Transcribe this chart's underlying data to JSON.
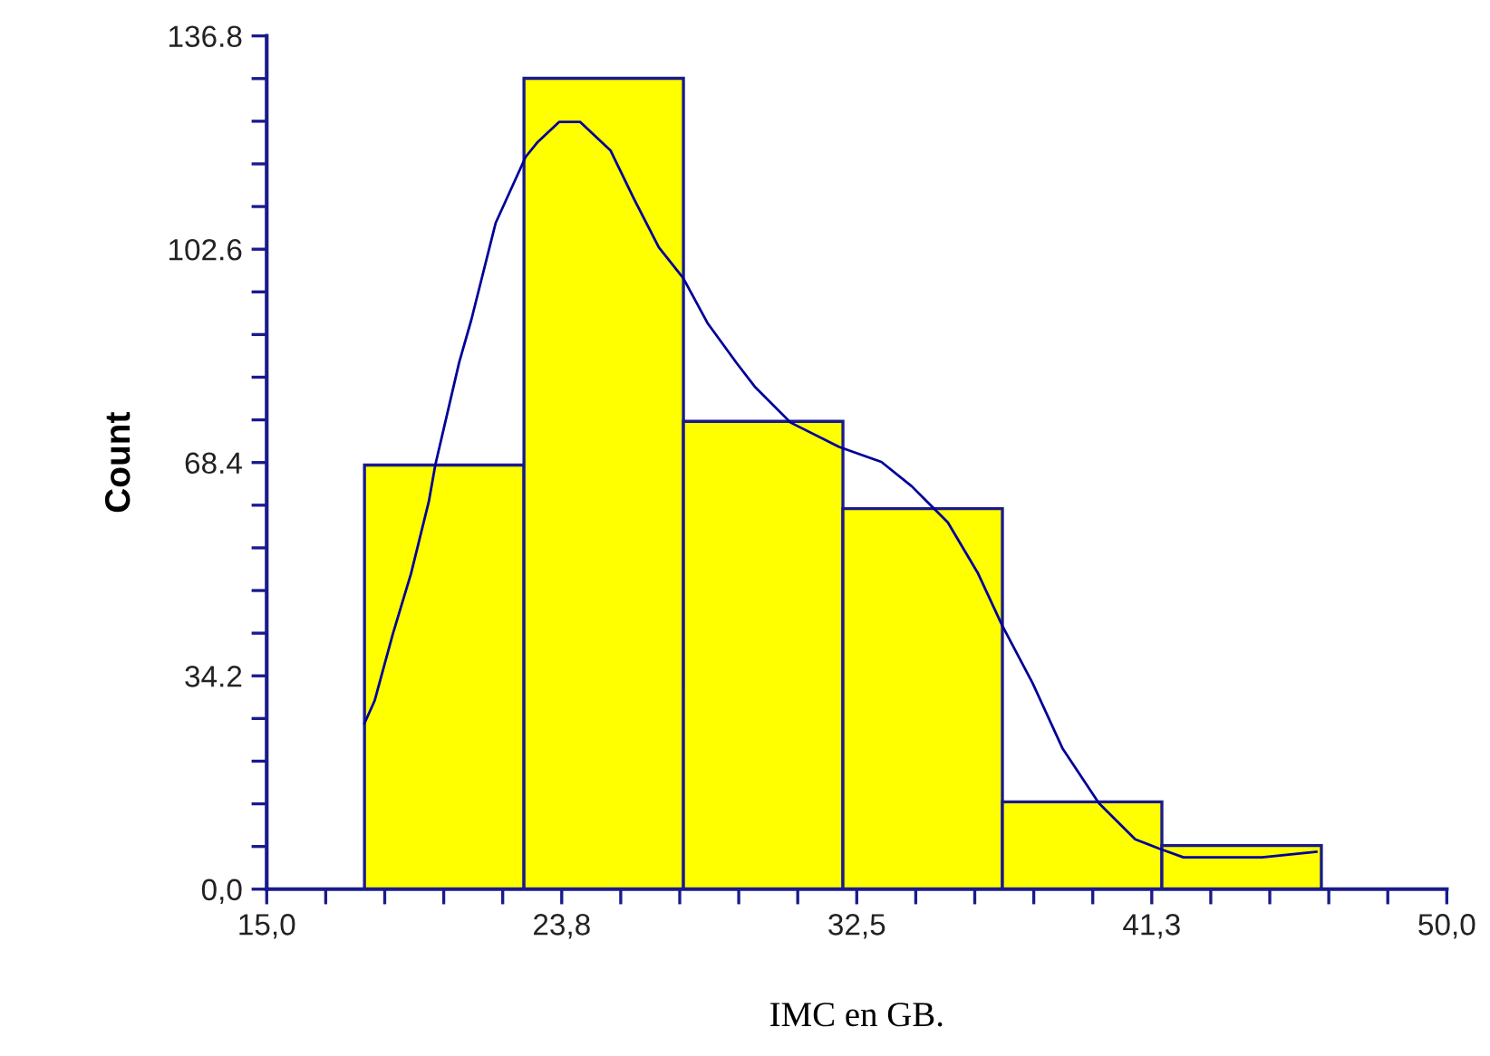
{
  "chart_data": {
    "type": "histogram",
    "xlabel": "IMC en GB.",
    "ylabel": "Count",
    "bins": [
      17.9,
      22.63,
      27.36,
      32.09,
      36.82,
      41.55,
      46.28
    ],
    "values": [
      68,
      130,
      75,
      61,
      14,
      7
    ],
    "color": "#ffff00",
    "series": [
      {
        "type": "line",
        "color": "#000099",
        "x": [
          17.9,
          18.2,
          18.74,
          19.28,
          19.81,
          20.0,
          20.71,
          21.07,
          21.79,
          22.68,
          23.04,
          23.67,
          24.3,
          25.2,
          25.9,
          26.63,
          27.35,
          28.07,
          28.93,
          29.47,
          30.54,
          31.98,
          33.23,
          34.13,
          35.2,
          36.1,
          36.81,
          37.71,
          38.61,
          39.68,
          40.76,
          41.47,
          42.19,
          44.52,
          46.13
        ],
        "values": [
          26.6,
          30.2,
          40.9,
          50.6,
          62.2,
          68.0,
          84.5,
          91.3,
          106.8,
          117.4,
          119.8,
          123.0,
          123.0,
          118.4,
          110.6,
          102.9,
          98.0,
          90.8,
          84.4,
          80.6,
          74.8,
          70.9,
          68.5,
          64.6,
          58.8,
          50.6,
          42.3,
          33.1,
          22.5,
          13.8,
          8.0,
          6.5,
          5.1,
          5.1,
          6.0
        ]
      }
    ],
    "xlim": [
      15,
      50
    ],
    "xticks": [
      {
        "value": 15,
        "label": "15,0"
      },
      {
        "value": 16.75,
        "label": null
      },
      {
        "value": 18.5,
        "label": null
      },
      {
        "value": 20.25,
        "label": null
      },
      {
        "value": 22,
        "label": null
      },
      {
        "value": 23.75,
        "label": "23,8"
      },
      {
        "value": 25.5,
        "label": null
      },
      {
        "value": 27.25,
        "label": null
      },
      {
        "value": 29,
        "label": null
      },
      {
        "value": 30.75,
        "label": null
      },
      {
        "value": 32.5,
        "label": "32,5"
      },
      {
        "value": 34.25,
        "label": null
      },
      {
        "value": 36,
        "label": null
      },
      {
        "value": 37.75,
        "label": null
      },
      {
        "value": 39.5,
        "label": null
      },
      {
        "value": 41.25,
        "label": "41,3"
      },
      {
        "value": 43,
        "label": null
      },
      {
        "value": 44.75,
        "label": null
      },
      {
        "value": 46.5,
        "label": null
      },
      {
        "value": 48.25,
        "label": null
      },
      {
        "value": 50,
        "label": "50,0"
      }
    ],
    "ylim": [
      0,
      136.8
    ],
    "yticks": [
      {
        "value": 0,
        "label": "0,0"
      },
      {
        "value": 6.84,
        "label": null
      },
      {
        "value": 13.68,
        "label": null
      },
      {
        "value": 20.52,
        "label": null
      },
      {
        "value": 27.36,
        "label": null
      },
      34.2,
      {
        "value": 41.04,
        "label": null
      },
      {
        "value": 47.88,
        "label": null
      },
      {
        "value": 54.72,
        "label": null
      },
      {
        "value": 61.56,
        "label": null
      },
      68.4,
      {
        "value": 75.24,
        "label": null
      },
      {
        "value": 82.08,
        "label": null
      },
      {
        "value": 88.92,
        "label": null
      },
      {
        "value": 95.76,
        "label": null
      },
      102.6,
      {
        "value": 109.44,
        "label": null
      },
      {
        "value": 116.28,
        "label": null
      },
      {
        "value": 123.12,
        "label": null
      },
      {
        "value": 129.96,
        "label": null
      },
      136.8
    ],
    "grid": false,
    "legend": false
  }
}
